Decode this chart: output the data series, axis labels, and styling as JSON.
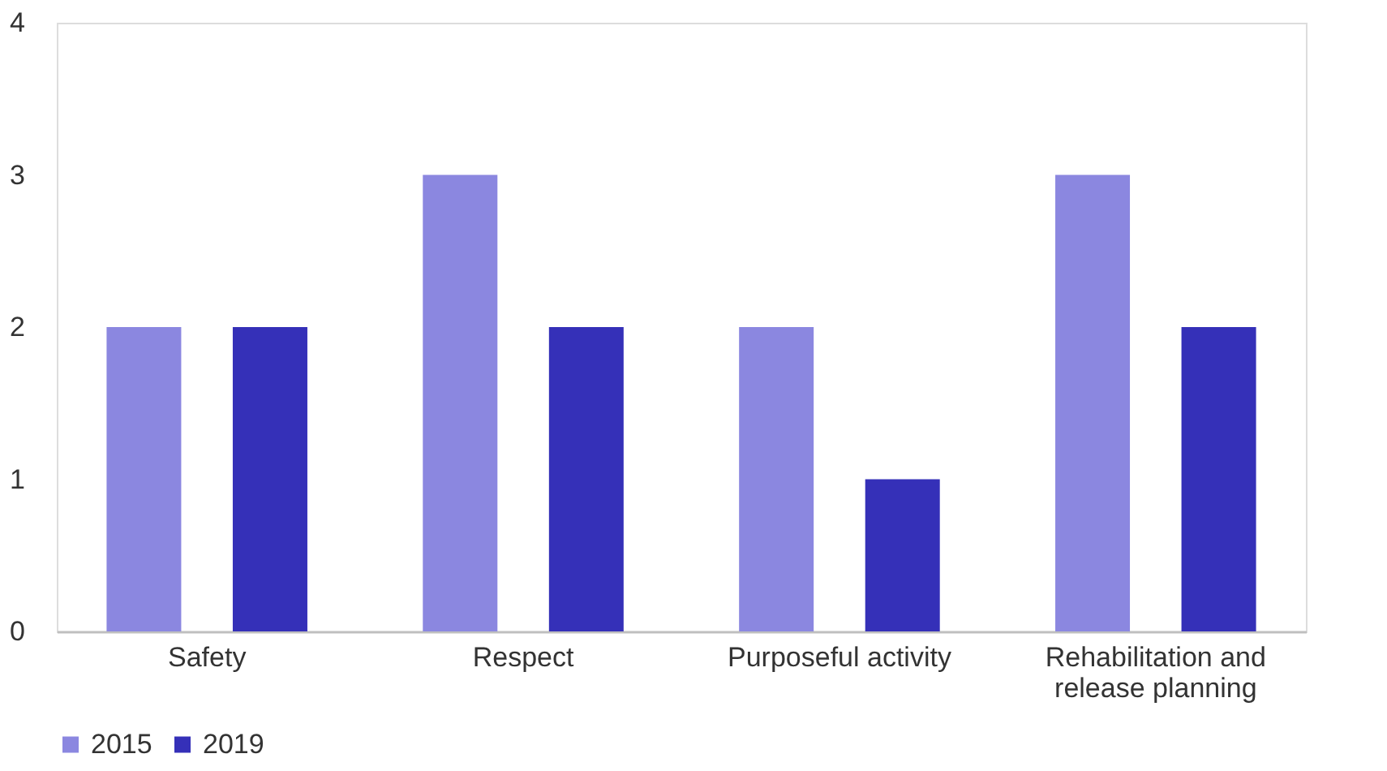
{
  "chart_data": {
    "type": "bar",
    "categories": [
      "Safety",
      "Respect",
      "Purposeful activity",
      "Rehabilitation and release planning"
    ],
    "series": [
      {
        "name": "2015",
        "color": "#8b87e0",
        "values": [
          2,
          3,
          2,
          3
        ]
      },
      {
        "name": "2019",
        "color": "#3530b8",
        "values": [
          2,
          2,
          1,
          2
        ]
      }
    ],
    "ylim": [
      0,
      4
    ],
    "yticks": [
      0,
      1,
      2,
      3,
      4
    ],
    "grid": false,
    "legend": "bottom"
  }
}
